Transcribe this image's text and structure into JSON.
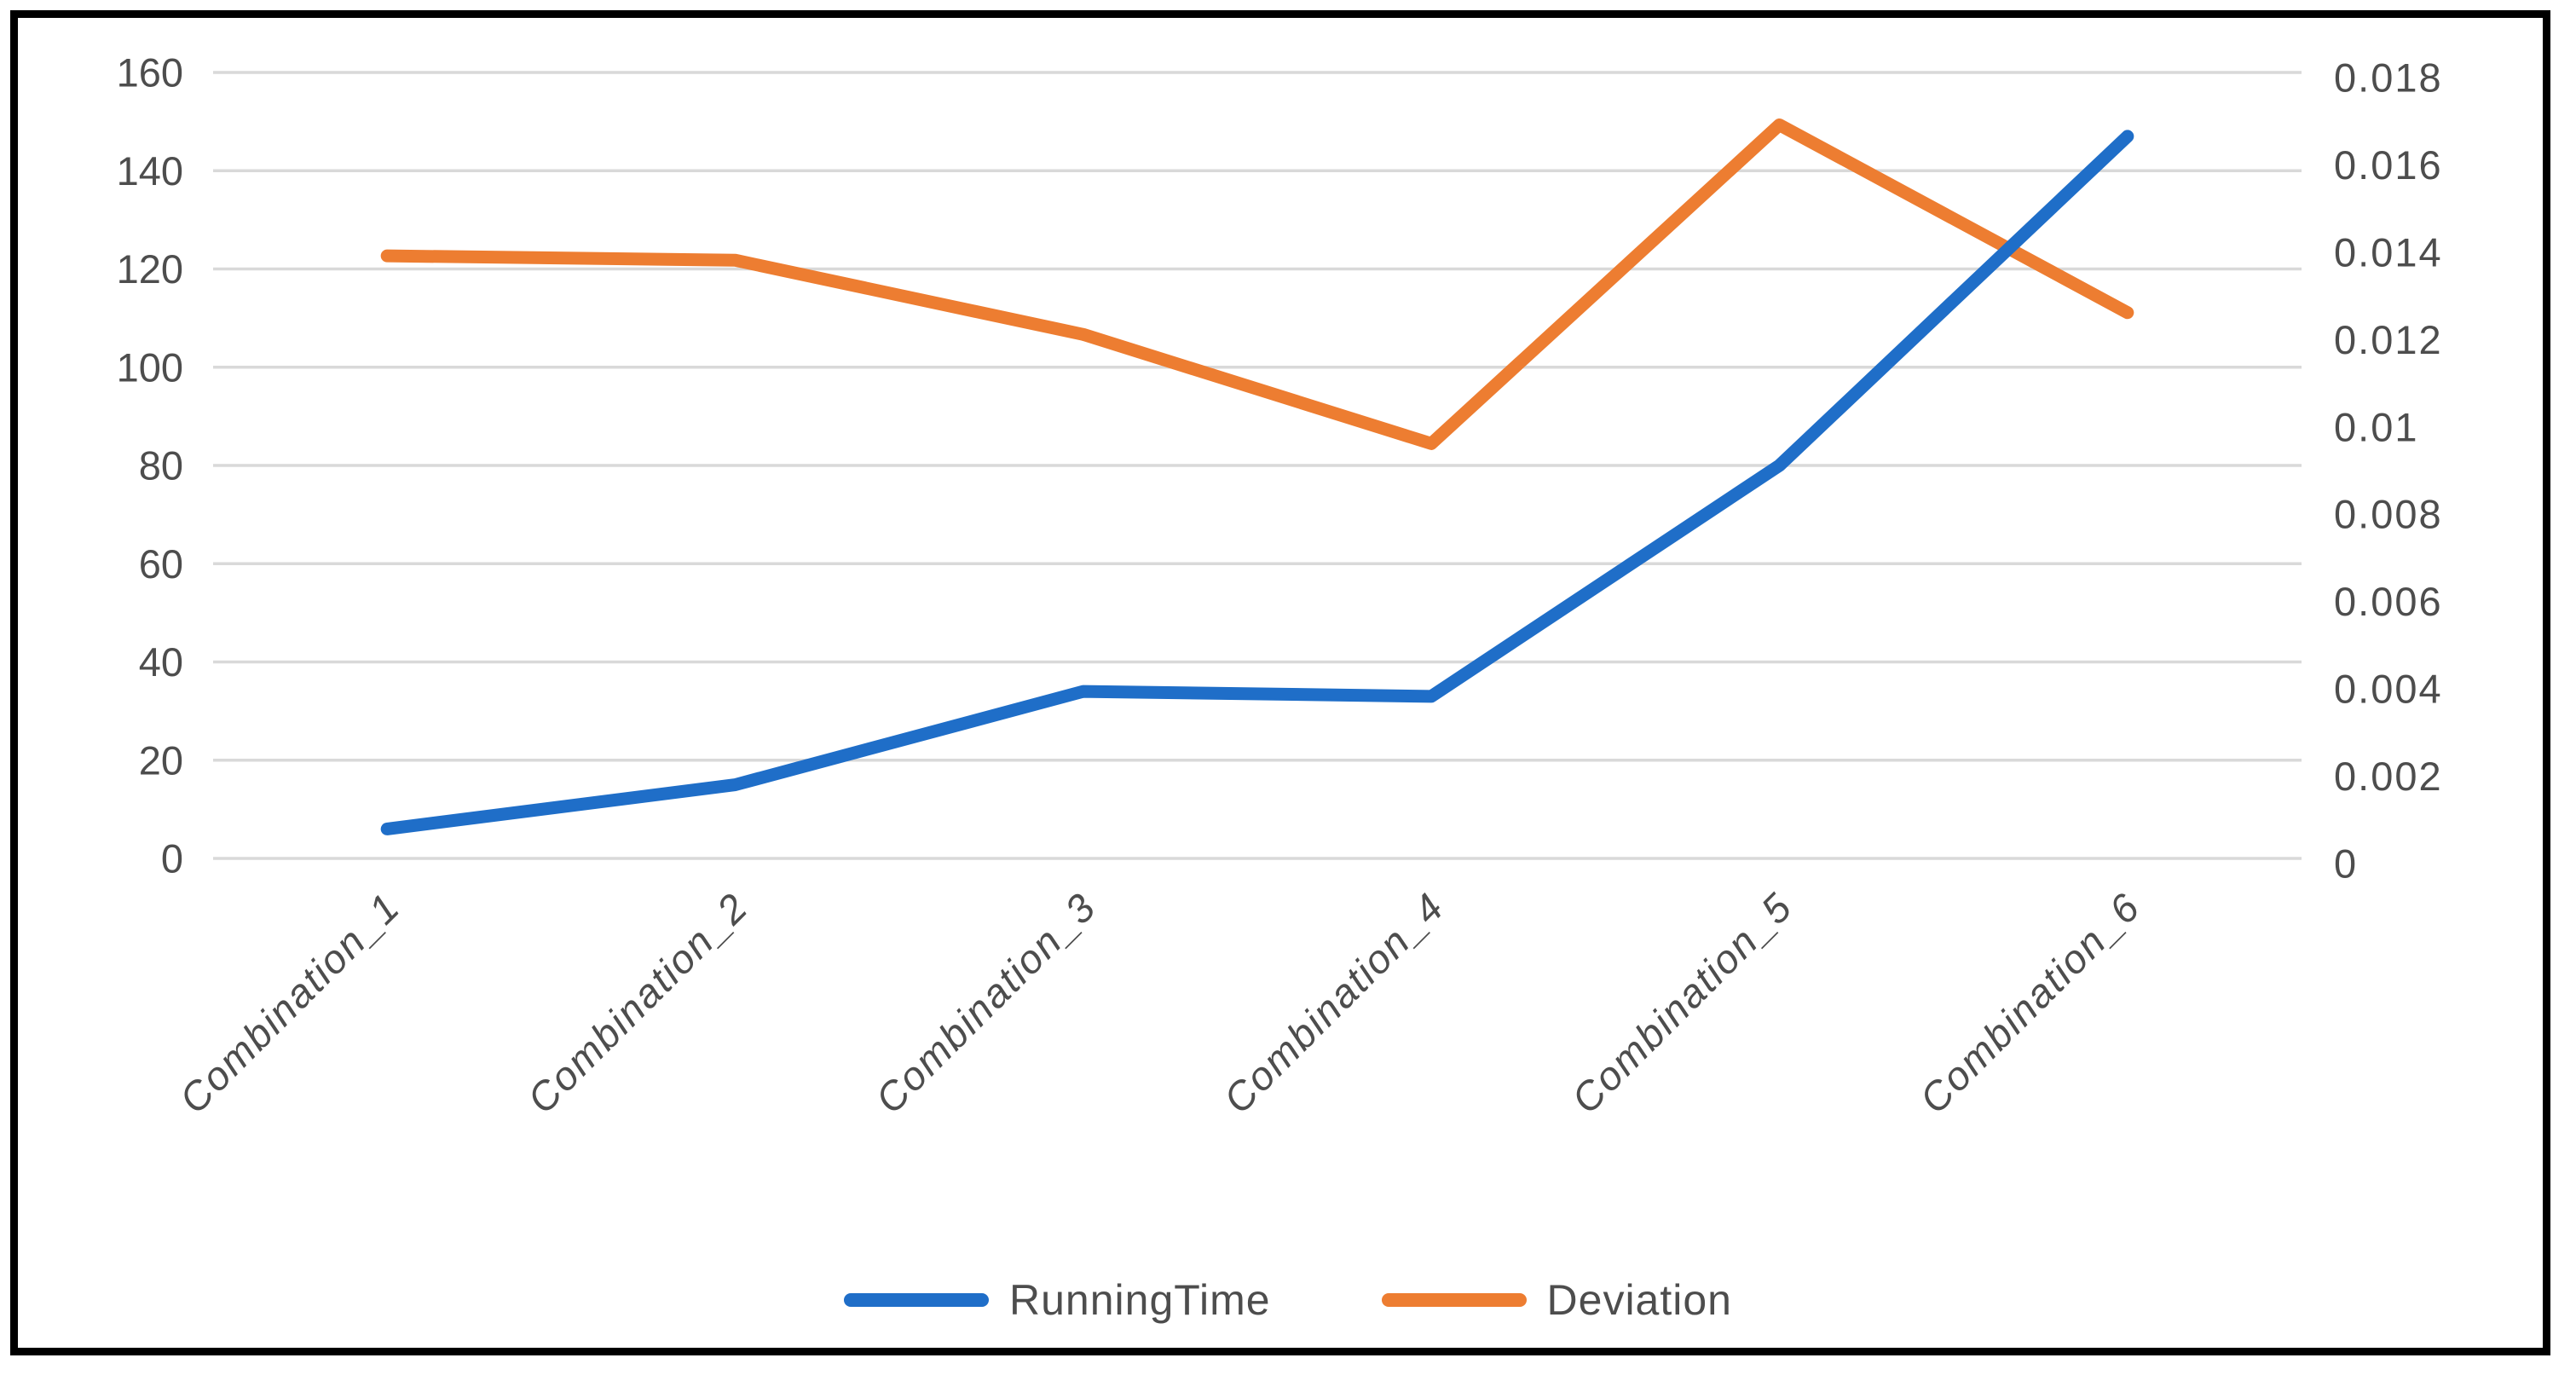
{
  "chart_data": {
    "type": "line",
    "title": "",
    "xlabel": "",
    "ylabel": "",
    "grid": true,
    "legend_position": "bottom",
    "categories": [
      "Combination_1",
      "Combination_2",
      "Combination_3",
      "Combination_4",
      "Combination_5",
      "Combination_6"
    ],
    "series": [
      {
        "name": "RunningTime",
        "axis": "left",
        "color": "#1F6EC8",
        "values": [
          6,
          15,
          34,
          33,
          80,
          147
        ]
      },
      {
        "name": "Deviation",
        "axis": "right",
        "color": "#ED7D31",
        "values": [
          0.0138,
          0.0137,
          0.012,
          0.0095,
          0.0168,
          0.0125
        ]
      }
    ],
    "left_axis": {
      "min": 0,
      "max": 160,
      "step": 20,
      "tick_labels": [
        "0",
        "20",
        "40",
        "60",
        "80",
        "100",
        "120",
        "140",
        "160"
      ]
    },
    "right_axis": {
      "min": 0,
      "max": 0.018,
      "step": 0.002,
      "tick_labels": [
        "0",
        "0.002",
        "0.004",
        "0.006",
        "0.008",
        "0.01",
        "0.012",
        "0.014",
        "0.016",
        "0.018"
      ]
    }
  },
  "legend": {
    "items": [
      {
        "label": "RunningTime",
        "color": "#1F6EC8"
      },
      {
        "label": "Deviation",
        "color": "#ED7D31"
      }
    ]
  },
  "colors": {
    "background": "#FFFFFF",
    "border": "#000000",
    "grid": "#D9D9D9",
    "text": "#4D4D4D"
  }
}
